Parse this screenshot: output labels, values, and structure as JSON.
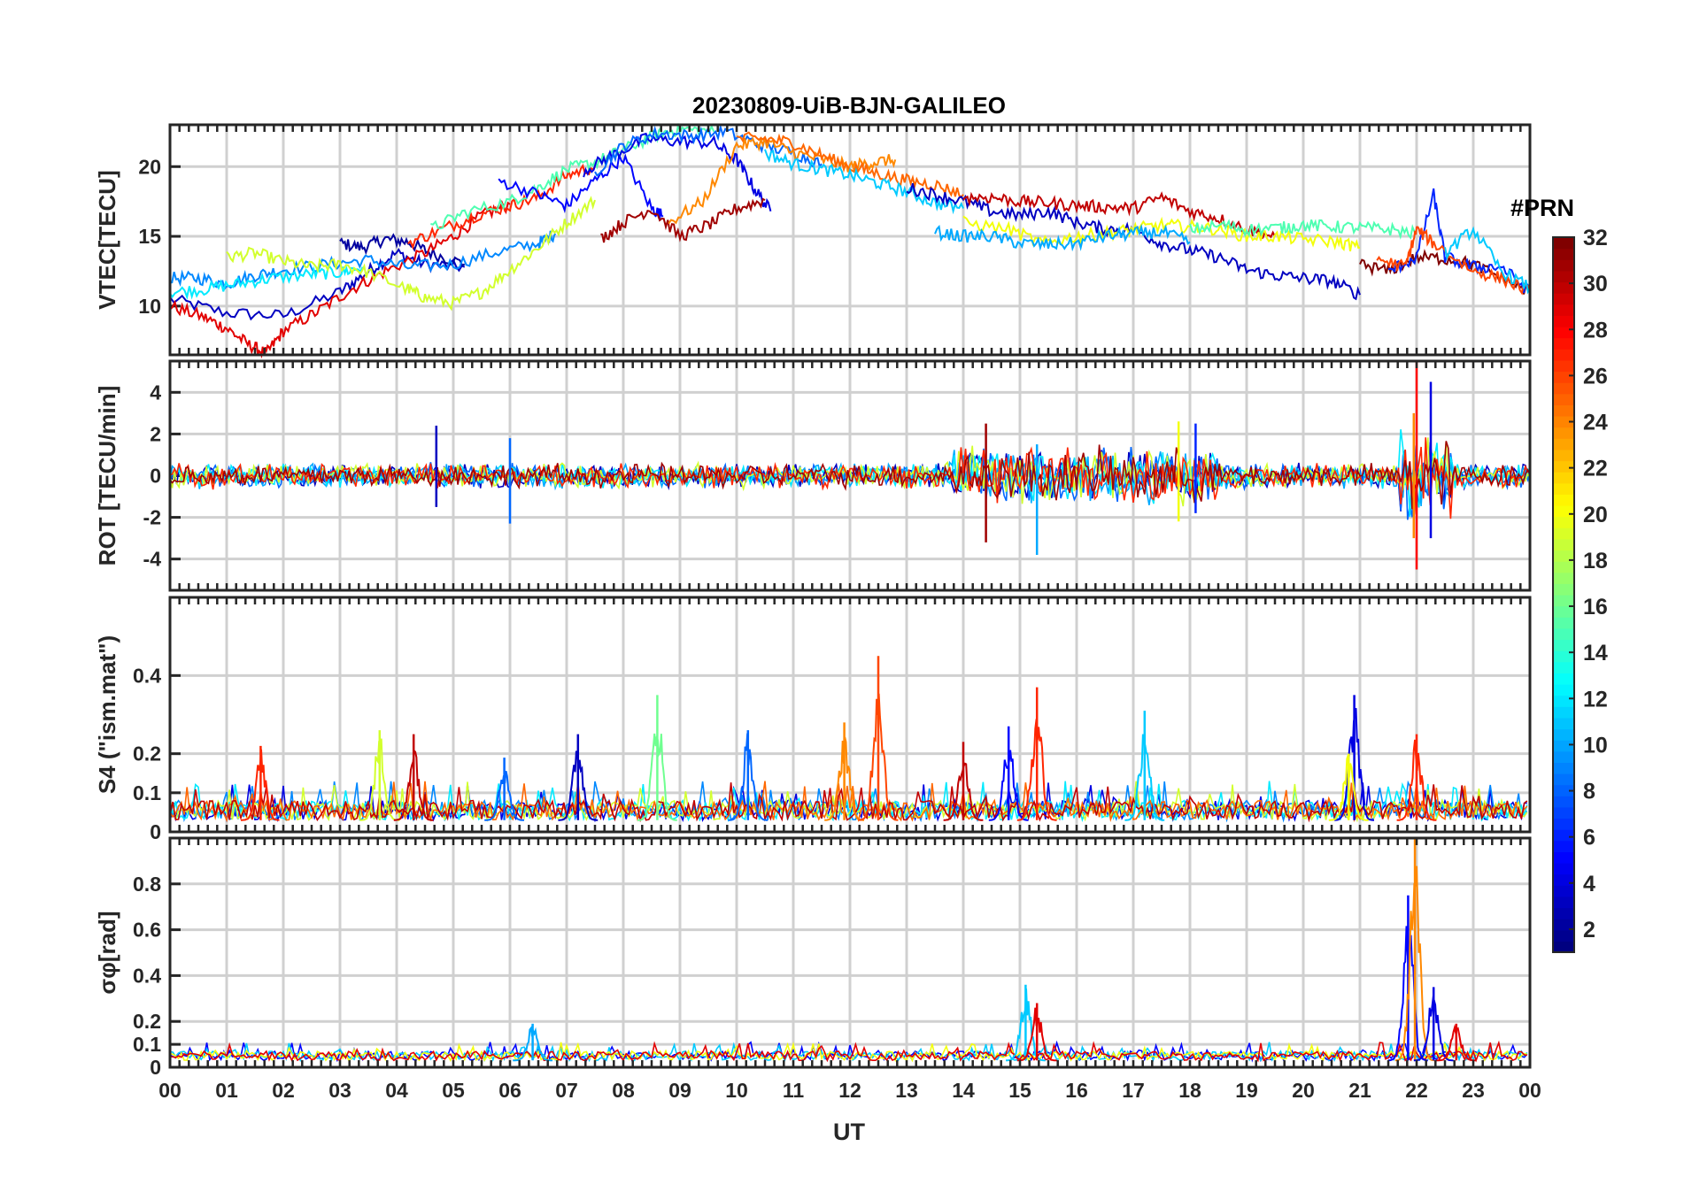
{
  "chart_data": {
    "title": "20230809-UiB-BJN-GALILEO",
    "type": "line",
    "xlabel": "UT",
    "x_tick_labels": [
      "00",
      "01",
      "02",
      "03",
      "04",
      "05",
      "06",
      "07",
      "08",
      "09",
      "10",
      "11",
      "12",
      "13",
      "14",
      "15",
      "16",
      "17",
      "18",
      "19",
      "20",
      "21",
      "22",
      "23",
      "00"
    ],
    "xlim": [
      0,
      24
    ],
    "colorbar": {
      "label": "#PRN",
      "colormap": "jet",
      "range": [
        1,
        32
      ],
      "tick_values": [
        2,
        4,
        6,
        8,
        10,
        12,
        14,
        16,
        18,
        20,
        22,
        24,
        26,
        28,
        30,
        32
      ],
      "tick_labels": [
        "2",
        "4",
        "6",
        "8",
        "10",
        "12",
        "14",
        "16",
        "18",
        "20",
        "22",
        "24",
        "26",
        "28",
        "30",
        "32"
      ]
    },
    "panels": [
      {
        "id": "vtec",
        "ylabel": "VTEC[TECU]",
        "ylim": [
          6.5,
          23
        ],
        "yticks": [
          10,
          15,
          20
        ],
        "ytick_labels": [
          "10",
          "15",
          "20"
        ],
        "series": [
          {
            "prn": 3,
            "x": [
              0,
              1,
              2,
              3,
              3.5,
              4,
              4.5,
              5.2
            ],
            "y": [
              10.5,
              9.5,
              9.3,
              11,
              12.5,
              13.8,
              13,
              12.8
            ]
          },
          {
            "prn": 2,
            "x": [
              3,
              3.4,
              3.8,
              4.2,
              4.6,
              5.2
            ],
            "y": [
              14.5,
              14.2,
              14.8,
              14.6,
              13.8,
              13
            ]
          },
          {
            "prn": 29,
            "x": [
              0,
              0.6,
              1,
              1.4,
              1.7,
              2,
              2.6,
              3.2,
              3.8,
              4.5,
              5,
              5.5,
              6
            ],
            "y": [
              10,
              9.2,
              8.4,
              7.2,
              6.6,
              8.2,
              9.6,
              11.2,
              12.5,
              13.8,
              15,
              16.5,
              17.3
            ]
          },
          {
            "prn": 9,
            "x": [
              0,
              0.5,
              1,
              1.5,
              2,
              2.8,
              3.5,
              4.2,
              5,
              5.8,
              6.5,
              6.8
            ],
            "y": [
              12,
              12,
              11.6,
              12.2,
              12.6,
              13,
              13.3,
              12.8,
              13,
              13.9,
              14.5,
              15.2
            ]
          },
          {
            "prn": 12,
            "x": [
              0,
              0.6,
              1.2,
              1.8,
              2.5,
              3,
              3.4
            ],
            "y": [
              11,
              11.2,
              11.6,
              12,
              12.3,
              12.4,
              12.8
            ]
          },
          {
            "prn": 19,
            "x": [
              1,
              1.5,
              2,
              2.5,
              3,
              3.5,
              4.2,
              4.5,
              5,
              5.5,
              6,
              6.5,
              7,
              7.5
            ],
            "y": [
              13.5,
              13.8,
              13.2,
              12.8,
              13,
              12.4,
              11.2,
              10.6,
              10.2,
              11,
              12.6,
              14.2,
              16,
              17.6
            ]
          },
          {
            "prn": 27,
            "x": [
              4.2,
              4.8,
              5.4,
              6,
              6.5,
              7,
              7.5
            ],
            "y": [
              14.5,
              15.5,
              16.5,
              17.2,
              17.8,
              19.4,
              20
            ]
          },
          {
            "prn": 15,
            "x": [
              4.6,
              5.2,
              6,
              6.5,
              7,
              7.5,
              8,
              8.6,
              9,
              9.6
            ],
            "y": [
              15.5,
              16.7,
              17.5,
              18.5,
              19.8,
              20.3,
              21.2,
              22.3,
              22.7,
              22.5
            ]
          },
          {
            "prn": 5,
            "x": [
              5.8,
              6.5,
              7,
              7.5,
              8,
              8.5,
              8.7
            ],
            "y": [
              19,
              18,
              17.2,
              19,
              20.7,
              17,
              16.5
            ]
          },
          {
            "prn": 4,
            "x": [
              7.3,
              7.8,
              8.4,
              9,
              9.6,
              10,
              10.3,
              10.6
            ],
            "y": [
              19.7,
              20.8,
              22,
              21.8,
              21.7,
              20.5,
              18.5,
              16.8
            ]
          },
          {
            "prn": 8,
            "x": [
              7.5,
              8,
              8.6,
              9.2,
              9.8,
              10.4,
              11,
              11.5
            ],
            "y": [
              19.6,
              21.5,
              22.4,
              22.2,
              22.5,
              21.6,
              21,
              20.2
            ]
          },
          {
            "prn": 31,
            "x": [
              7.6,
              8,
              8.5,
              9,
              9.5,
              10,
              10.5
            ],
            "y": [
              14.8,
              16,
              17,
              15,
              15.8,
              17,
              17.6
            ]
          },
          {
            "prn": 24,
            "x": [
              8.8,
              9.4,
              10,
              10.5,
              11,
              11.5,
              12,
              12.4,
              12.8
            ],
            "y": [
              16,
              17.5,
              21.5,
              21.8,
              21,
              20.5,
              20,
              20.3,
              20.5
            ]
          },
          {
            "prn": 25,
            "x": [
              10,
              10.5,
              11,
              11.5,
              12,
              12.5,
              13,
              13.5,
              14
            ],
            "y": [
              22,
              22,
              21.7,
              20.8,
              20,
              19.5,
              19,
              18.7,
              18
            ]
          },
          {
            "prn": 11,
            "x": [
              10.5,
              11,
              11.5,
              12,
              12.5,
              13,
              13.5,
              14
            ],
            "y": [
              21,
              20.2,
              19.8,
              19.4,
              18.8,
              18.2,
              17.4,
              17
            ]
          },
          {
            "prn": 3,
            "x": [
              13,
              13.5,
              14,
              14.5,
              15,
              15.5,
              16,
              16.5,
              17,
              17.5,
              18,
              18.5,
              19,
              19.5,
              20,
              20.5,
              21
            ],
            "y": [
              18.5,
              18,
              17.5,
              16.8,
              16.5,
              16.8,
              16,
              15.5,
              15.5,
              14.5,
              14,
              13.5,
              12.6,
              12.2,
              12,
              11.8,
              10.8
            ]
          },
          {
            "prn": 30,
            "x": [
              14,
              14.5,
              15,
              15.5,
              16,
              16.5,
              17,
              17.5,
              18,
              18.5,
              19,
              19.5
            ],
            "y": [
              17.8,
              17.8,
              17.5,
              17.4,
              17.2,
              17.1,
              17,
              17.8,
              16.8,
              16.3,
              15.5,
              15
            ]
          },
          {
            "prn": 20,
            "x": [
              14,
              14.8,
              15.4,
              16,
              16.5,
              17,
              17.5,
              18,
              18.5,
              19,
              19.5,
              20,
              20.6,
              21
            ],
            "y": [
              16,
              15.5,
              14.5,
              15,
              15.2,
              15.5,
              15.8,
              15.7,
              15.5,
              15,
              15,
              14.8,
              14.6,
              14.2
            ]
          },
          {
            "prn": 15,
            "x": [
              18,
              18.6,
              19,
              19.6,
              20,
              20.5,
              21,
              21.5,
              22
            ],
            "y": [
              15.5,
              15.8,
              15.5,
              15.6,
              15.8,
              15.7,
              15.6,
              15.5,
              15.2
            ]
          },
          {
            "prn": 10,
            "x": [
              13.5,
              14,
              14.5,
              15,
              15.5,
              16,
              16.5,
              17,
              17.5,
              18
            ],
            "y": [
              15.3,
              15,
              15,
              14.5,
              14.4,
              14.5,
              15,
              15.2,
              15.3,
              14.6
            ]
          },
          {
            "prn": 32,
            "x": [
              21,
              21.5,
              22,
              22.5,
              23,
              23.5,
              24
            ],
            "y": [
              13,
              12.5,
              13.5,
              13.4,
              13,
              12,
              11
            ]
          },
          {
            "prn": 6,
            "x": [
              21.5,
              22,
              22.3,
              22.5,
              23,
              23.5,
              24
            ],
            "y": [
              12.5,
              13.5,
              18,
              13.5,
              12.8,
              12.8,
              11
            ]
          },
          {
            "prn": 26,
            "x": [
              21.3,
              21.8,
              22,
              22.3,
              23,
              23.5,
              24
            ],
            "y": [
              13.4,
              12.8,
              15.5,
              14.5,
              12.5,
              12,
              11
            ]
          },
          {
            "prn": 11,
            "x": [
              22.5,
              23,
              23.5,
              24
            ],
            "y": [
              13.8,
              15.5,
              12.5,
              11.3
            ]
          }
        ]
      },
      {
        "id": "rot",
        "ylabel": "ROT [TECU/min]",
        "ylim": [
          -5.5,
          5.5
        ],
        "yticks": [
          -4,
          -2,
          0,
          2,
          4
        ],
        "ytick_labels": [
          "-4",
          "-2",
          "0",
          "2",
          "4"
        ],
        "events": [
          {
            "prn": 28,
            "x": 22.0,
            "y": [
              -4.5,
              5.5
            ]
          },
          {
            "prn": 24,
            "x": 21.95,
            "y": [
              -3,
              3
            ]
          },
          {
            "prn": 4,
            "x": 22.25,
            "y": [
              -3,
              4.5
            ]
          },
          {
            "prn": 31,
            "x": 14.4,
            "y": [
              -3.2,
              2.5
            ]
          },
          {
            "prn": 10,
            "x": 15.3,
            "y": [
              -3.8,
              1.5
            ]
          },
          {
            "prn": 8,
            "x": 6,
            "y": [
              -2.3,
              1.8
            ]
          },
          {
            "prn": 3,
            "x": 4.7,
            "y": [
              -1.5,
              2.4
            ]
          },
          {
            "prn": 6,
            "x": 18.1,
            "y": [
              -1.8,
              2.5
            ]
          },
          {
            "prn": 20,
            "x": 17.8,
            "y": [
              -2.2,
              2.6
            ]
          }
        ]
      },
      {
        "id": "s4",
        "ylabel": "S4 (\"ism.mat\")",
        "ylim": [
          0,
          0.6
        ],
        "yticks": [
          0,
          0.1,
          0.2,
          0.4
        ],
        "ytick_labels": [
          "0",
          "0.1",
          "0.2",
          "0.4"
        ],
        "peaks": [
          {
            "prn": 27,
            "x": 1.6,
            "peak": 0.22
          },
          {
            "prn": 19,
            "x": 3.7,
            "peak": 0.26
          },
          {
            "prn": 30,
            "x": 4.3,
            "peak": 0.25
          },
          {
            "prn": 8,
            "x": 5.9,
            "peak": 0.19
          },
          {
            "prn": 3,
            "x": 7.2,
            "peak": 0.25
          },
          {
            "prn": 16,
            "x": 8.6,
            "peak": 0.35
          },
          {
            "prn": 8,
            "x": 10.2,
            "peak": 0.26
          },
          {
            "prn": 24,
            "x": 11.9,
            "peak": 0.28
          },
          {
            "prn": 26,
            "x": 12.5,
            "peak": 0.45
          },
          {
            "prn": 30,
            "x": 14,
            "peak": 0.23
          },
          {
            "prn": 5,
            "x": 14.8,
            "peak": 0.27
          },
          {
            "prn": 27,
            "x": 15.3,
            "peak": 0.37
          },
          {
            "prn": 11,
            "x": 17.2,
            "peak": 0.31
          },
          {
            "prn": 4,
            "x": 20.9,
            "peak": 0.35
          },
          {
            "prn": 20,
            "x": 20.8,
            "peak": 0.2
          },
          {
            "prn": 27,
            "x": 22,
            "peak": 0.25
          }
        ]
      },
      {
        "id": "sigma_phi",
        "ylabel": "σφ[rad]",
        "ylim": [
          0,
          1
        ],
        "yticks": [
          0,
          0.1,
          0.2,
          0.4,
          0.6,
          0.8
        ],
        "ytick_labels": [
          "0",
          "0.1",
          "0.2",
          "0.4",
          "0.6",
          "0.8"
        ],
        "peaks": [
          {
            "prn": 10,
            "x": 6.4,
            "peak": 0.19
          },
          {
            "prn": 11,
            "x": 15.1,
            "peak": 0.36
          },
          {
            "prn": 29,
            "x": 15.3,
            "peak": 0.28
          },
          {
            "prn": 5,
            "x": 21.85,
            "peak": 0.75
          },
          {
            "prn": 24,
            "x": 21.97,
            "peak": 1.0
          },
          {
            "prn": 4,
            "x": 22.3,
            "peak": 0.35
          },
          {
            "prn": 29,
            "x": 22.7,
            "peak": 0.19
          }
        ]
      }
    ]
  }
}
